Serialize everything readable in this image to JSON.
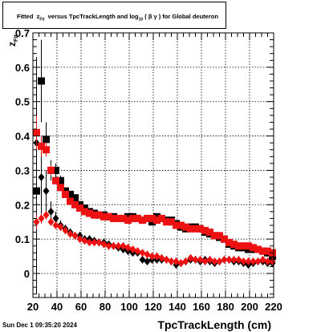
{
  "title_box": {
    "prefix": "Fitted",
    "z": "z",
    "z_sub": "Fit",
    "middle": "versus TpcTrackLength and log",
    "log_sub": "10",
    "suffix": "( β γ ) for Global deuteron"
  },
  "timestamp": "Sun Dec  1 09:35:20 2024",
  "chart_data": {
    "type": "scatter",
    "xlabel": "TpcTrackLength (cm)",
    "ylabel": "z",
    "ylabel_sub": "Fit",
    "xlim": [
      20,
      220
    ],
    "ylim": [
      -0.07,
      0.7
    ],
    "xticks": [
      20,
      40,
      60,
      80,
      100,
      120,
      140,
      160,
      180,
      200,
      220
    ],
    "yticks": [
      0,
      0.1,
      0.2,
      0.3,
      0.4,
      0.5,
      0.6,
      0.7
    ],
    "grid": true,
    "colors": {
      "black": "#000000",
      "red": "#ee1111"
    },
    "series": [
      {
        "marker": "square",
        "color": "#000000",
        "x": [
          23,
          27,
          31,
          35,
          39,
          43,
          47,
          51,
          55,
          59,
          63,
          67,
          71,
          75,
          79,
          83,
          87,
          91,
          95,
          99,
          103,
          107,
          111,
          115,
          119,
          123,
          127,
          131,
          135,
          139,
          143,
          147,
          151,
          155,
          159,
          163,
          167,
          171,
          175,
          179,
          183,
          187,
          191,
          195,
          199,
          203,
          207,
          211,
          215,
          219
        ],
        "y": [
          0.24,
          0.56,
          0.39,
          0.3,
          0.3,
          0.27,
          0.24,
          0.23,
          0.22,
          0.2,
          0.19,
          0.18,
          0.175,
          0.17,
          0.17,
          0.165,
          0.165,
          0.16,
          0.16,
          0.165,
          0.165,
          0.16,
          0.155,
          0.16,
          0.15,
          0.165,
          0.16,
          0.155,
          0.155,
          0.145,
          0.135,
          0.13,
          0.135,
          0.135,
          0.13,
          0.12,
          0.115,
          0.11,
          0.105,
          0.1,
          0.085,
          0.08,
          0.075,
          0.075,
          0.07,
          0.07,
          0.07,
          0.065,
          0.06,
          0.05
        ],
        "err": [
          0.3,
          0.12,
          0.05,
          0.03,
          0.02,
          0.015,
          0.01,
          0.01,
          0.01,
          0.008,
          0.008,
          0.007,
          0.007,
          0.006,
          0.006,
          0.006,
          0.006,
          0.006,
          0.006,
          0.006,
          0.006,
          0.006,
          0.006,
          0.006,
          0.006,
          0.006,
          0.006,
          0.006,
          0.006,
          0.006,
          0.006,
          0.006,
          0.006,
          0.006,
          0.006,
          0.006,
          0.006,
          0.006,
          0.006,
          0.006,
          0.006,
          0.006,
          0.006,
          0.006,
          0.006,
          0.006,
          0.006,
          0.006,
          0.006,
          0.006
        ]
      },
      {
        "marker": "diamond",
        "color": "#000000",
        "x": [
          23,
          27,
          31,
          35,
          39,
          43,
          47,
          51,
          55,
          59,
          63,
          67,
          71,
          75,
          79,
          83,
          87,
          91,
          95,
          99,
          103,
          107,
          111,
          115,
          119,
          123,
          127,
          131,
          135,
          139,
          143,
          147,
          151,
          155,
          159,
          163,
          167,
          171,
          175,
          179,
          183,
          187,
          191,
          195,
          199,
          203,
          207,
          211,
          215,
          219
        ],
        "y": [
          0.38,
          0.28,
          0.24,
          0.18,
          0.16,
          0.14,
          0.13,
          0.12,
          0.11,
          0.11,
          0.1,
          0.1,
          0.095,
          0.09,
          0.09,
          0.085,
          0.08,
          0.075,
          0.07,
          0.065,
          0.06,
          0.06,
          0.04,
          0.035,
          0.04,
          0.04,
          0.04,
          0.04,
          0.035,
          0.025,
          0.03,
          0.035,
          0.04,
          0.04,
          0.035,
          0.04,
          0.035,
          0.03,
          0.035,
          0.04,
          0.04,
          0.035,
          0.035,
          0.03,
          0.025,
          0.03,
          0.035,
          0.035,
          0.03,
          0.03
        ],
        "err": [
          0.25,
          0.12,
          0.06,
          0.03,
          0.02,
          0.015,
          0.012,
          0.01,
          0.01,
          0.008,
          0.008,
          0.007,
          0.007,
          0.006,
          0.006,
          0.006,
          0.006,
          0.006,
          0.006,
          0.006,
          0.006,
          0.006,
          0.006,
          0.006,
          0.006,
          0.006,
          0.006,
          0.006,
          0.006,
          0.006,
          0.006,
          0.006,
          0.006,
          0.006,
          0.006,
          0.006,
          0.006,
          0.006,
          0.006,
          0.006,
          0.006,
          0.006,
          0.006,
          0.006,
          0.006,
          0.006,
          0.006,
          0.006,
          0.006,
          0.006
        ]
      },
      {
        "marker": "square",
        "color": "#ee1111",
        "x": [
          23,
          27,
          31,
          35,
          39,
          43,
          47,
          51,
          55,
          59,
          63,
          67,
          71,
          75,
          79,
          83,
          87,
          91,
          95,
          99,
          103,
          107,
          111,
          115,
          119,
          123,
          127,
          131,
          135,
          139,
          143,
          147,
          151,
          155,
          159,
          163,
          167,
          171,
          175,
          179,
          183,
          187,
          191,
          195,
          199,
          203,
          207,
          211,
          215,
          219
        ],
        "y": [
          0.41,
          0.37,
          0.36,
          0.3,
          0.27,
          0.25,
          0.23,
          0.21,
          0.2,
          0.19,
          0.18,
          0.175,
          0.17,
          0.17,
          0.165,
          0.165,
          0.16,
          0.16,
          0.16,
          0.155,
          0.16,
          0.16,
          0.155,
          0.16,
          0.16,
          0.155,
          0.16,
          0.15,
          0.15,
          0.14,
          0.14,
          0.135,
          0.13,
          0.13,
          0.13,
          0.125,
          0.12,
          0.11,
          0.11,
          0.1,
          0.09,
          0.085,
          0.08,
          0.08,
          0.08,
          0.075,
          0.07,
          0.065,
          0.065,
          0.06
        ],
        "err": [
          0.05,
          0.03,
          0.02,
          0.015,
          0.01,
          0.01,
          0.008,
          0.008,
          0.007,
          0.007,
          0.006,
          0.006,
          0.006,
          0.006,
          0.006,
          0.006,
          0.006,
          0.006,
          0.006,
          0.006,
          0.006,
          0.006,
          0.006,
          0.006,
          0.006,
          0.006,
          0.006,
          0.006,
          0.006,
          0.006,
          0.006,
          0.006,
          0.006,
          0.006,
          0.006,
          0.006,
          0.006,
          0.006,
          0.006,
          0.006,
          0.006,
          0.006,
          0.006,
          0.006,
          0.006,
          0.006,
          0.006,
          0.006,
          0.006,
          0.006
        ]
      },
      {
        "marker": "diamond",
        "color": "#ee1111",
        "x": [
          23,
          27,
          31,
          35,
          39,
          43,
          47,
          51,
          55,
          59,
          63,
          67,
          71,
          75,
          79,
          83,
          87,
          91,
          95,
          99,
          103,
          107,
          111,
          115,
          119,
          123,
          127,
          131,
          135,
          139,
          143,
          147,
          151,
          155,
          159,
          163,
          167,
          171,
          175,
          179,
          183,
          187,
          191,
          195,
          199,
          203,
          207,
          211,
          215,
          219
        ],
        "y": [
          0.15,
          0.16,
          0.17,
          0.15,
          0.14,
          0.135,
          0.125,
          0.115,
          0.11,
          0.1,
          0.095,
          0.09,
          0.09,
          0.09,
          0.085,
          0.08,
          0.08,
          0.08,
          0.08,
          0.075,
          0.07,
          0.065,
          0.06,
          0.055,
          0.05,
          0.05,
          0.045,
          0.04,
          0.035,
          0.035,
          0.03,
          0.035,
          0.045,
          0.04,
          0.04,
          0.035,
          0.04,
          0.035,
          0.035,
          0.04,
          0.04,
          0.04,
          0.04,
          0.035,
          0.035,
          0.035,
          0.035,
          0.04,
          0.035,
          0.035
        ],
        "err": [
          0.02,
          0.015,
          0.012,
          0.01,
          0.008,
          0.008,
          0.007,
          0.007,
          0.006,
          0.006,
          0.006,
          0.006,
          0.006,
          0.006,
          0.006,
          0.006,
          0.006,
          0.006,
          0.006,
          0.006,
          0.006,
          0.006,
          0.006,
          0.006,
          0.006,
          0.006,
          0.006,
          0.006,
          0.006,
          0.006,
          0.006,
          0.006,
          0.006,
          0.006,
          0.006,
          0.006,
          0.006,
          0.006,
          0.006,
          0.006,
          0.006,
          0.006,
          0.006,
          0.006,
          0.006,
          0.006,
          0.006,
          0.006,
          0.006,
          0.006
        ]
      }
    ]
  }
}
